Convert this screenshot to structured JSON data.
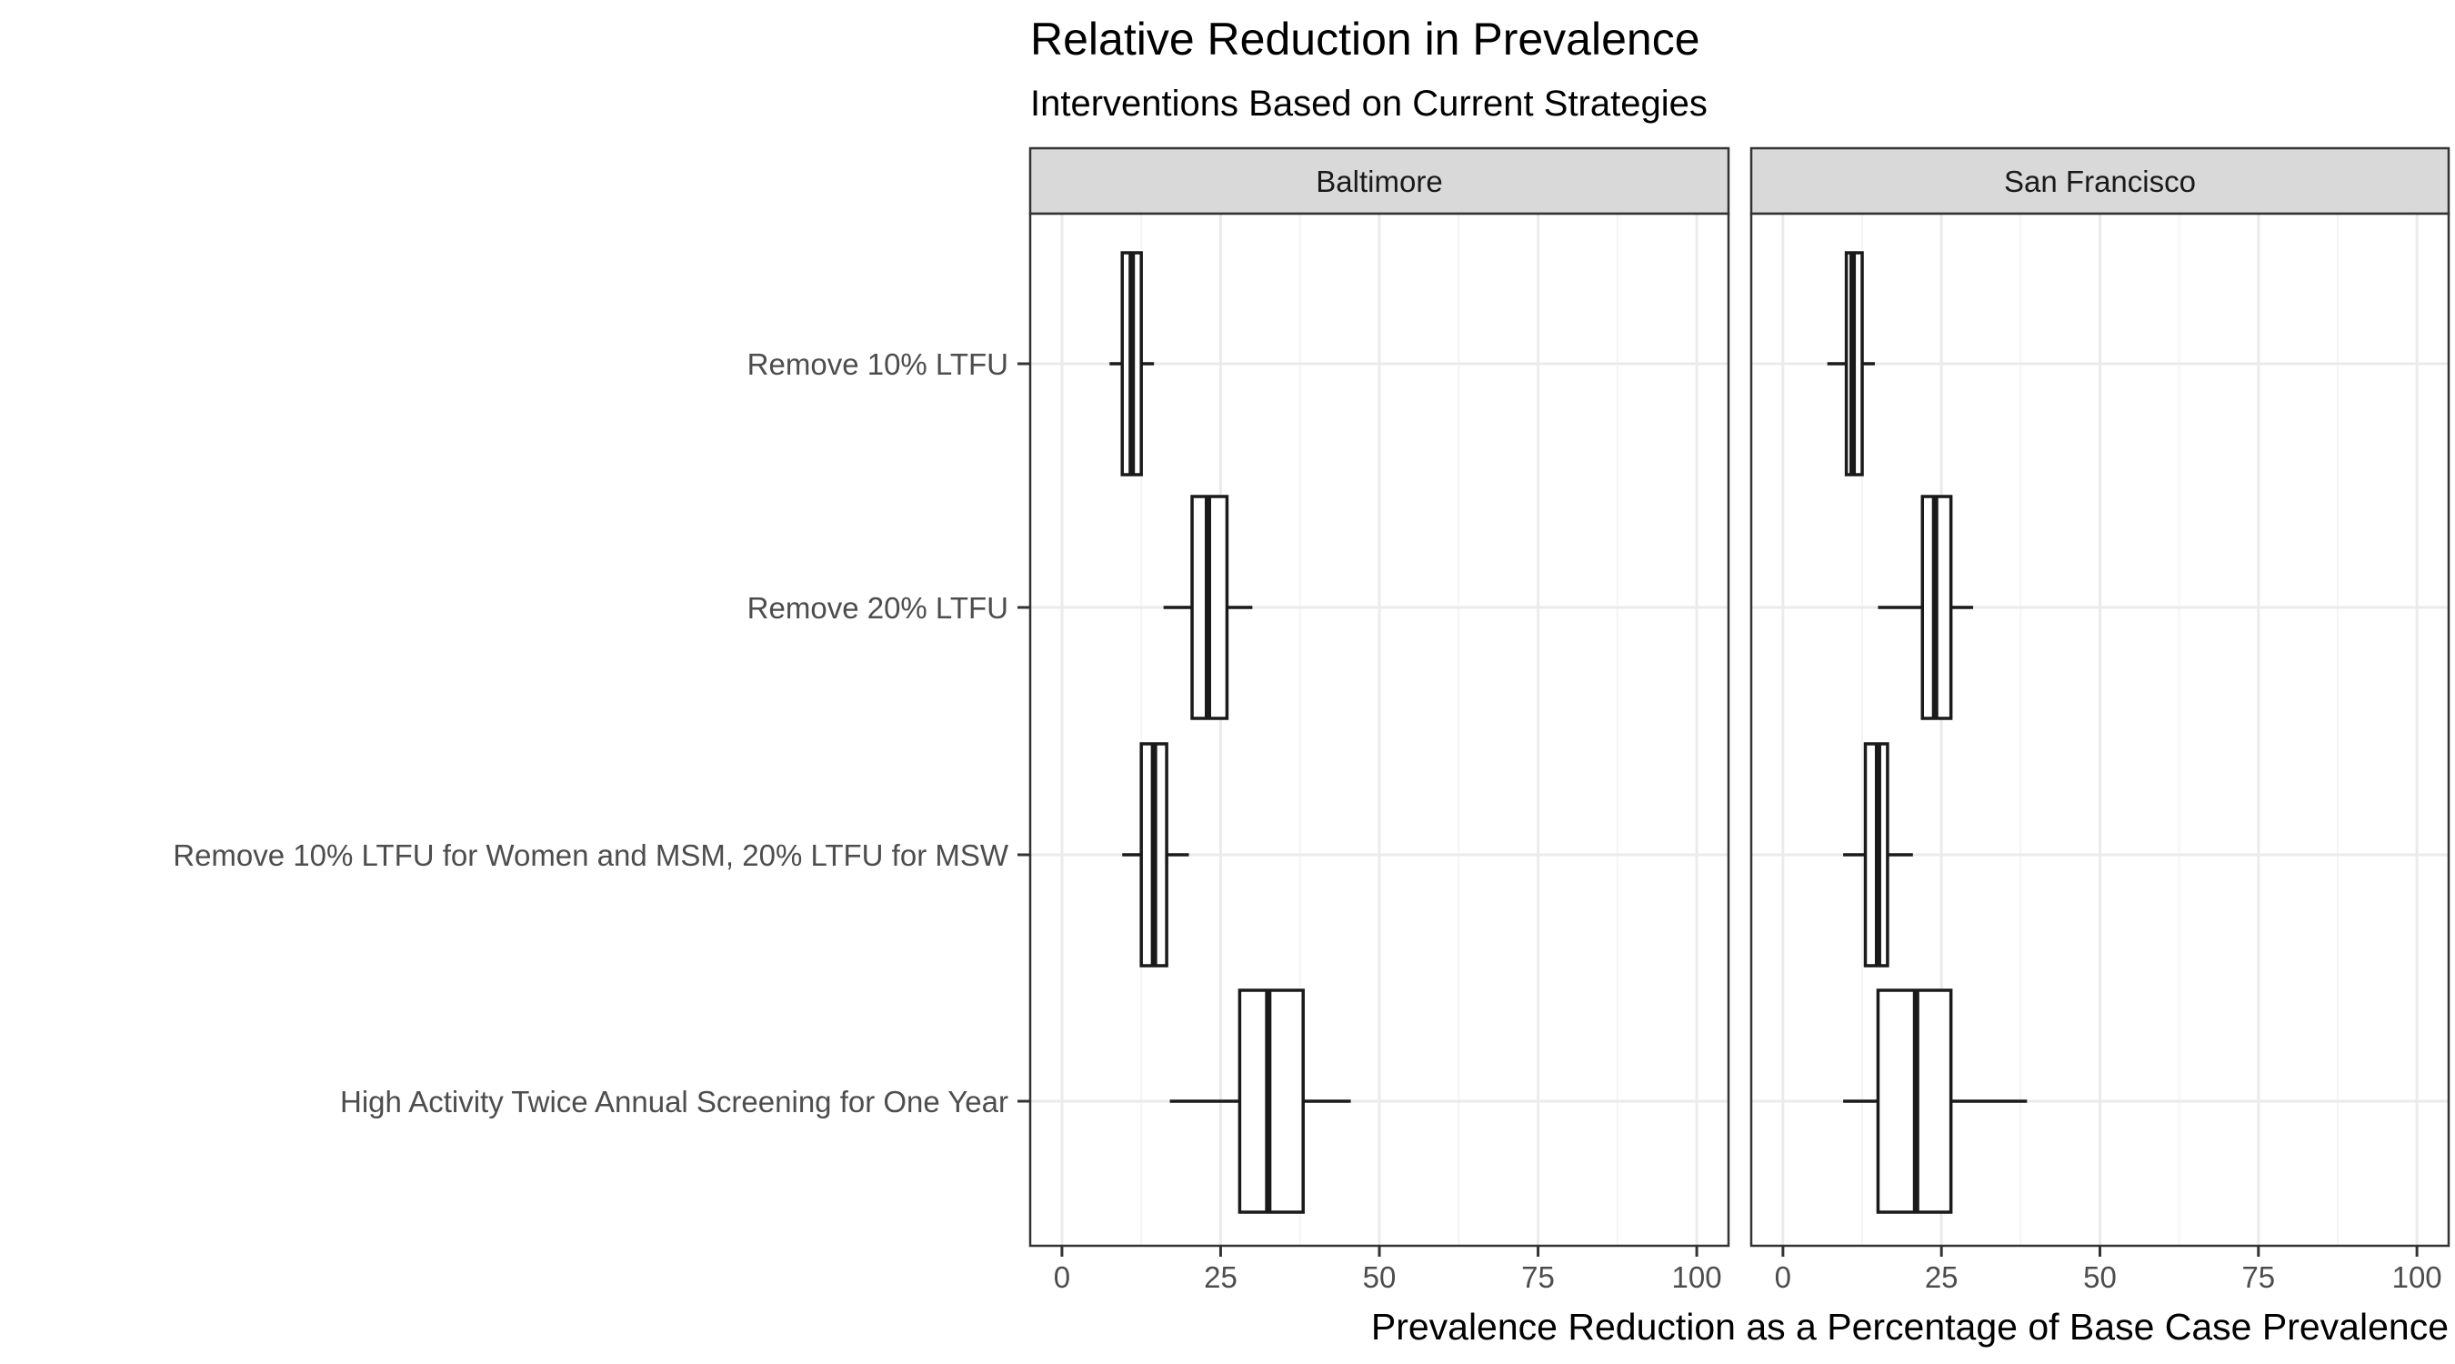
{
  "chart_data": {
    "type": "boxplot",
    "title": "Relative Reduction in Prevalence",
    "subtitle": "Interventions Based on Current Strategies",
    "xlabel": "Prevalence Reduction as a Percentage of Base Case Prevalence",
    "ylabel": "",
    "xlim": [
      -5,
      105
    ],
    "x_ticks": [
      0,
      25,
      50,
      75,
      100
    ],
    "categories": [
      "Remove 10% LTFU",
      "Remove 20% LTFU",
      "Remove 10% LTFU for Women and MSM, 20% LTFU for MSW",
      "High Activity Twice Annual Screening for One Year"
    ],
    "facets": [
      {
        "name": "Baltimore",
        "boxes": [
          {
            "category": "Remove 10% LTFU",
            "min": 7.5,
            "q1": 9.5,
            "median": 11,
            "q3": 12.5,
            "max": 14.5
          },
          {
            "category": "Remove 20% LTFU",
            "min": 16,
            "q1": 20.5,
            "median": 23,
            "q3": 26,
            "max": 30
          },
          {
            "category": "Remove 10% LTFU for Women and MSM, 20% LTFU for MSW",
            "min": 9.5,
            "q1": 12.5,
            "median": 14.5,
            "q3": 16.5,
            "max": 20
          },
          {
            "category": "High Activity Twice Annual Screening for One Year",
            "min": 17,
            "q1": 28,
            "median": 32.5,
            "q3": 38,
            "max": 45.5
          }
        ]
      },
      {
        "name": "San Francisco",
        "boxes": [
          {
            "category": "Remove 10% LTFU",
            "min": 7,
            "q1": 10,
            "median": 11,
            "q3": 12.5,
            "max": 14.5
          },
          {
            "category": "Remove 20% LTFU",
            "min": 15,
            "q1": 22,
            "median": 24,
            "q3": 26.5,
            "max": 30
          },
          {
            "category": "Remove 10% LTFU for Women and MSM, 20% LTFU for MSW",
            "min": 9.5,
            "q1": 13,
            "median": 15,
            "q3": 16.5,
            "max": 20.5
          },
          {
            "category": "High Activity Twice Annual Screening for One Year",
            "min": 9.5,
            "q1": 15,
            "median": 21,
            "q3": 26.5,
            "max": 38.5
          }
        ]
      }
    ],
    "grid": true,
    "legend": "none",
    "colors": {
      "panel_border": "#333333",
      "strip_fill": "#d9d9d9",
      "grid_major": "#ebebeb",
      "grid_minor": "#f5f5f5",
      "box_line": "#1a1a1a",
      "tick_text": "#4d4d4d"
    }
  }
}
